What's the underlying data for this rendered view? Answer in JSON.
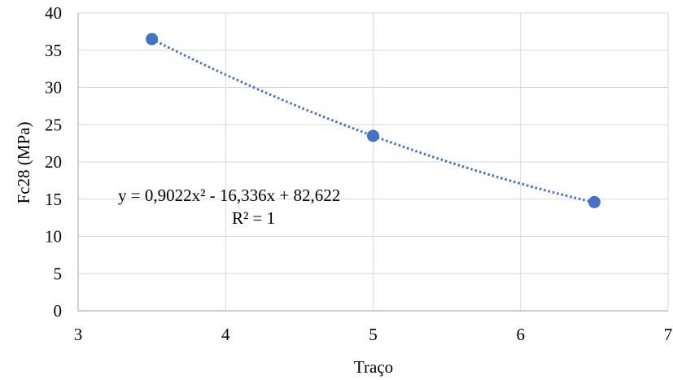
{
  "chart_data": {
    "type": "scatter",
    "title": "",
    "xlabel": "Traço",
    "ylabel": "Fc28 (MPa)",
    "xlim": [
      3,
      7
    ],
    "ylim": [
      0,
      40
    ],
    "xticks": [
      3,
      4,
      5,
      6,
      7
    ],
    "yticks": [
      0,
      5,
      10,
      15,
      20,
      25,
      30,
      35,
      40
    ],
    "grid": true,
    "series": [
      {
        "x": [
          3.5,
          5.0,
          6.5
        ],
        "y": [
          36.5,
          23.5,
          14.6
        ],
        "color": "#4472C4"
      }
    ],
    "trendline": {
      "type": "polynomial",
      "order": 2,
      "coefficients": [
        0.9022,
        -16.336,
        82.622
      ],
      "x_range": [
        3.5,
        6.5
      ],
      "style": "dotted",
      "color": "#4472C4",
      "equation_label": "y = 0,9022x² - 16,336x + 82,622",
      "r2_label": "R² = 1"
    }
  }
}
